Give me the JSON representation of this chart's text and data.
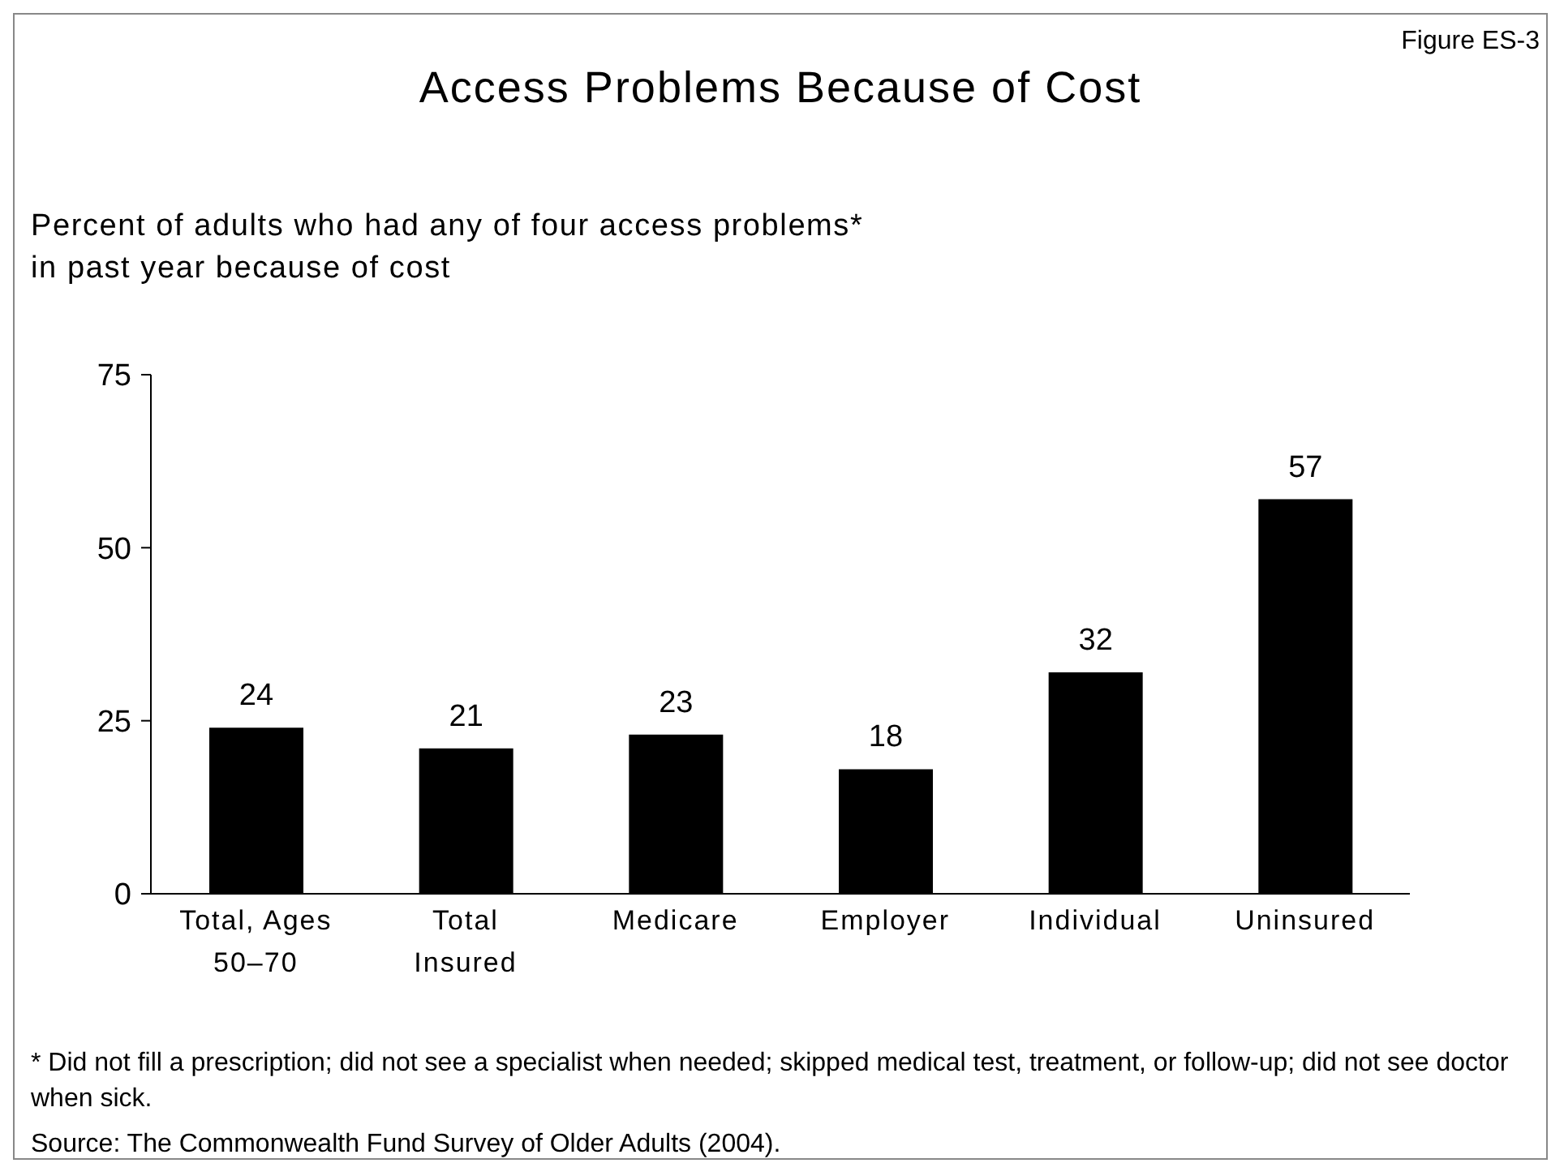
{
  "chart_data": {
    "type": "bar",
    "title": "Access Problems Because of Cost",
    "subtitle": "Percent of adults who had any of four access problems*\nin past year because of cost",
    "categories": [
      "Total, Ages 50–70",
      "Total Insured",
      "Medicare",
      "Employer",
      "Individual",
      "Uninsured"
    ],
    "values": [
      24,
      21,
      23,
      18,
      32,
      57
    ],
    "color": "#000000",
    "ylim": [
      0,
      75
    ],
    "yticks": [
      0,
      25,
      50,
      75
    ],
    "data_labels": true,
    "annotations": [
      "Figure ES-3",
      "* Did not fill a prescription; did not see a specialist when needed; skipped medical test, treatment, or follow-up; did not see doctor when sick.",
      "Source: The Commonwealth Fund Survey of Older Adults (2004)."
    ]
  }
}
